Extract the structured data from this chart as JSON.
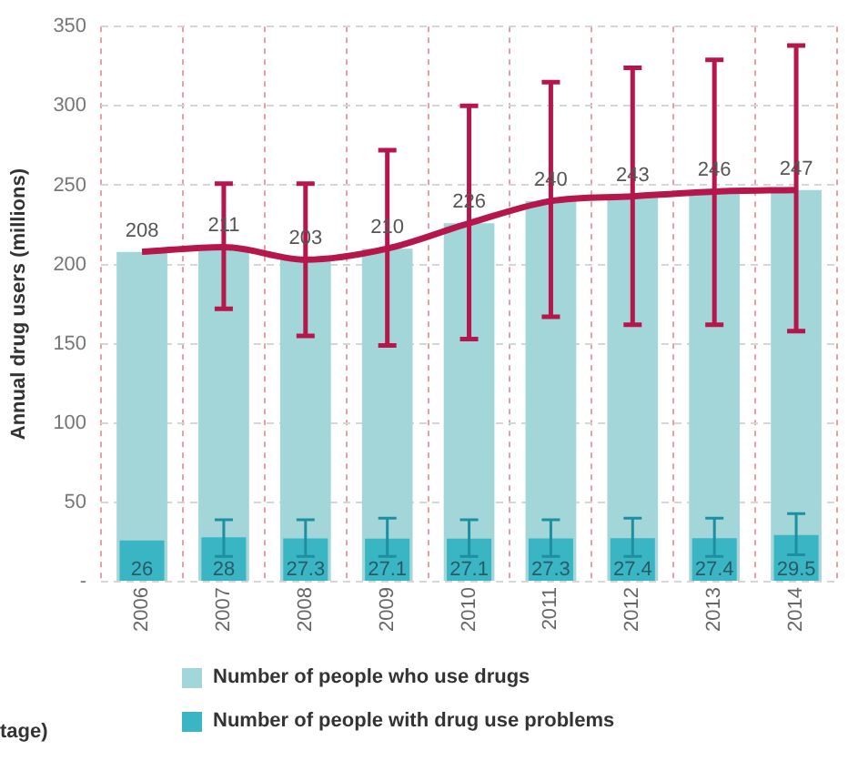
{
  "chart_data": {
    "type": "bar",
    "ylabel": "Annual drug users (millions)",
    "categories": [
      "2006",
      "2007",
      "2008",
      "2009",
      "2010",
      "2011",
      "2012",
      "2013",
      "2014"
    ],
    "series": [
      {
        "name": "Number of people who use drugs",
        "color": "#a3d6d9",
        "values": [
          208,
          211,
          203,
          210,
          226,
          240,
          243,
          246,
          247
        ]
      },
      {
        "name": "Number of people with drug use problems",
        "color": "#3ab5c4",
        "values": [
          26,
          28,
          27.3,
          27.1,
          27.1,
          27.3,
          27.4,
          27.4,
          29.5
        ],
        "value_labels": [
          "26",
          "28",
          "27.3",
          "27.1",
          "27.1",
          "27.3",
          "27.4",
          "27.4",
          "29.5"
        ],
        "errors": [
          null,
          [
            16,
            39
          ],
          [
            16,
            39
          ],
          [
            16,
            40
          ],
          [
            16,
            39
          ],
          [
            16,
            39
          ],
          [
            16,
            40
          ],
          [
            16,
            40
          ],
          [
            17,
            43
          ]
        ]
      },
      {
        "type": "line",
        "color": "#b5174b",
        "values": [
          208,
          211,
          203,
          210,
          226,
          240,
          243,
          246,
          247
        ],
        "value_labels": [
          "208",
          "211",
          "203",
          "210",
          "226",
          "240",
          "243",
          "246",
          "247"
        ],
        "errors": [
          null,
          [
            172,
            251
          ],
          [
            155,
            251
          ],
          [
            149,
            272
          ],
          [
            153,
            300
          ],
          [
            167,
            315
          ],
          [
            162,
            324
          ],
          [
            162,
            329
          ],
          [
            158,
            338
          ]
        ]
      }
    ],
    "ylim": [
      0,
      350
    ],
    "yticks": [
      {
        "value": 0,
        "label": "-"
      },
      50,
      100,
      150,
      200,
      250,
      300,
      350
    ],
    "grid": true,
    "legend": "bottom",
    "marker": "none",
    "line_style": "solid",
    "annotations": [
      "tage)"
    ]
  }
}
